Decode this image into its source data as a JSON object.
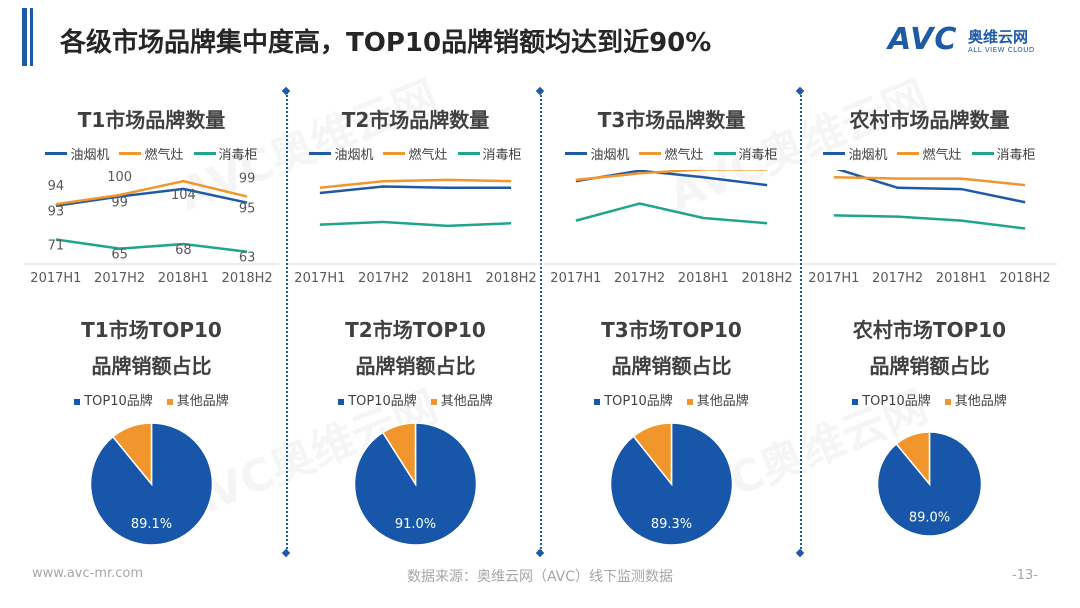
{
  "page": {
    "title": "各级市场品牌集中度高，TOP10品牌销额均达到近90%",
    "footer_site": "www.avc-mr.com",
    "footer_source": "数据来源：奥维云网（AVC）线下监测数据",
    "page_number": "-13-"
  },
  "logo": {
    "mark": "AVC",
    "cn": "奥维云网",
    "en": "ALL VIEW CLOUD"
  },
  "watermark": {
    "mark": "AVC",
    "cn": "奥维云网"
  },
  "legend": {
    "line_series": [
      "油烟机",
      "燃气灶",
      "消毒柜"
    ],
    "pie_series": [
      "TOP10品牌",
      "其他品牌"
    ]
  },
  "colors": {
    "series": [
      "#1f5aa6",
      "#f0962c",
      "#20a48c"
    ],
    "pie": [
      "#1756a9",
      "#f0962c"
    ]
  },
  "panels": [
    {
      "line_title": "T1市场品牌数量",
      "pie_title_1": "T1市场TOP10",
      "pie_title_2": "品牌销额占比",
      "pie_label": "89.1%"
    },
    {
      "line_title": "T2市场品牌数量",
      "pie_title_1": "T2市场TOP10",
      "pie_title_2": "品牌销额占比",
      "pie_label": "91.0%"
    },
    {
      "line_title": "T3市场品牌数量",
      "pie_title_1": "T3市场TOP10",
      "pie_title_2": "品牌销额占比",
      "pie_label": "89.3%"
    },
    {
      "line_title": "农村市场品牌数量",
      "pie_title_1": "农村市场TOP10",
      "pie_title_2": "品牌销额占比",
      "pie_label": "89.0%"
    }
  ],
  "chart_data": [
    {
      "type": "line",
      "title": "T1市场品牌数量",
      "categories": [
        "2017H1",
        "2017H2",
        "2018H1",
        "2018H2"
      ],
      "ylim": [
        55,
        115
      ],
      "show_labels": true,
      "series": [
        {
          "name": "油烟机",
          "values": [
            93,
            99,
            104,
            95
          ]
        },
        {
          "name": "燃气灶",
          "values": [
            94,
            100,
            109,
            99
          ]
        },
        {
          "name": "消毒柜",
          "values": [
            71,
            65,
            68,
            63
          ]
        }
      ]
    },
    {
      "type": "line",
      "title": "T2市场品牌数量",
      "categories": [
        "2017H1",
        "2017H2",
        "2018H1",
        "2018H2"
      ],
      "ylim": [
        40,
        110
      ],
      "show_labels": false,
      "series": [
        {
          "name": "油烟机",
          "values": [
            94,
            99,
            98,
            98
          ]
        },
        {
          "name": "燃气灶",
          "values": [
            98,
            103,
            104,
            103
          ]
        },
        {
          "name": "消毒柜",
          "values": [
            70,
            72,
            69,
            71
          ]
        }
      ]
    },
    {
      "type": "line",
      "title": "T3市场品牌数量",
      "categories": [
        "2017H1",
        "2017H2",
        "2018H1",
        "2018H2"
      ],
      "ylim": [
        40,
        110
      ],
      "show_labels": false,
      "series": [
        {
          "name": "油烟机",
          "values": [
            103,
            111,
            106,
            100
          ]
        },
        {
          "name": "燃气灶",
          "values": [
            104,
            109,
            112,
            112
          ]
        },
        {
          "name": "消毒柜",
          "values": [
            73,
            86,
            75,
            71
          ]
        }
      ]
    },
    {
      "type": "line",
      "title": "农村市场品牌数量",
      "categories": [
        "2017H1",
        "2017H2",
        "2018H1",
        "2018H2"
      ],
      "ylim": [
        40,
        110
      ],
      "show_labels": false,
      "series": [
        {
          "name": "油烟机",
          "values": [
            113,
            98,
            97,
            87
          ]
        },
        {
          "name": "燃气灶",
          "values": [
            106,
            105,
            105,
            100
          ]
        },
        {
          "name": "消毒柜",
          "values": [
            77,
            76,
            73,
            67
          ]
        }
      ]
    },
    {
      "type": "pie",
      "title": "T1市场TOP10品牌销额占比",
      "categories": [
        "TOP10品牌",
        "其他品牌"
      ],
      "values": [
        89.1,
        10.9
      ]
    },
    {
      "type": "pie",
      "title": "T2市场TOP10品牌销额占比",
      "categories": [
        "TOP10品牌",
        "其他品牌"
      ],
      "values": [
        91.0,
        9.0
      ]
    },
    {
      "type": "pie",
      "title": "T3市场TOP10品牌销额占比",
      "categories": [
        "TOP10品牌",
        "其他品牌"
      ],
      "values": [
        89.3,
        10.7
      ]
    },
    {
      "type": "pie",
      "title": "农村市场TOP10品牌销额占比",
      "categories": [
        "TOP10品牌",
        "其他品牌"
      ],
      "values": [
        89.0,
        11.0
      ]
    }
  ]
}
